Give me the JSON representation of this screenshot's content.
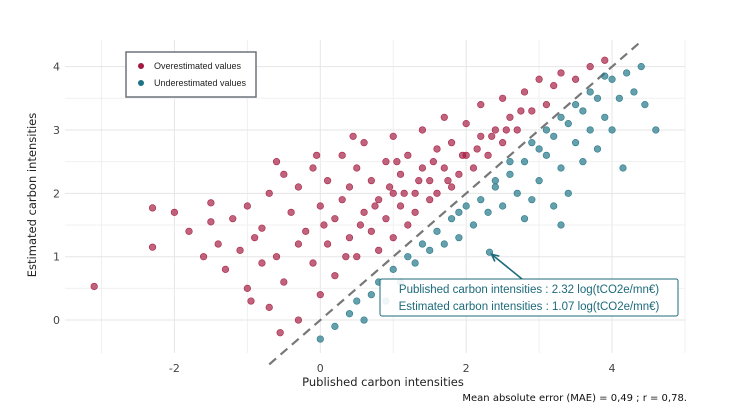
{
  "chart_data": {
    "type": "scatter",
    "xlabel": "Published carbon intensities",
    "ylabel": "Estimated carbon intensities",
    "xlim": [
      -3.5,
      5.0
    ],
    "ylim": [
      -0.52,
      4.42
    ],
    "xticks": [
      -2,
      0,
      2,
      4
    ],
    "yticks": [
      0,
      1,
      2,
      3,
      4
    ],
    "grid": true,
    "legend_position": "top-left",
    "reference_line": "y = x (dashed)",
    "caption": "Mean absolute error (MAE) = 0,49 ; r = 0,78.",
    "series": [
      {
        "name": "Overestimated values",
        "color": "#a3193f",
        "points": [
          [
            -3.1,
            0.53
          ],
          [
            -2.3,
            1.77
          ],
          [
            -2.3,
            1.15
          ],
          [
            -2.0,
            1.7
          ],
          [
            -1.8,
            1.4
          ],
          [
            -1.5,
            1.85
          ],
          [
            -1.5,
            1.55
          ],
          [
            -1.4,
            1.2
          ],
          [
            -1.3,
            0.8
          ],
          [
            -1.2,
            1.6
          ],
          [
            -1.1,
            1.1
          ],
          [
            -1.0,
            0.5
          ],
          [
            -1.0,
            1.8
          ],
          [
            -0.95,
            0.3
          ],
          [
            -0.9,
            1.3
          ],
          [
            -0.8,
            1.45
          ],
          [
            -0.7,
            2.0
          ],
          [
            -0.7,
            0.2
          ],
          [
            -0.6,
            2.5
          ],
          [
            -0.6,
            1.0
          ],
          [
            -0.5,
            2.3
          ],
          [
            -0.5,
            0.6
          ],
          [
            -0.4,
            1.7
          ],
          [
            -0.3,
            2.1
          ],
          [
            -0.3,
            0.0
          ],
          [
            -0.2,
            1.4
          ],
          [
            -0.1,
            0.9
          ],
          [
            -0.1,
            2.4
          ],
          [
            0.0,
            1.8
          ],
          [
            0.0,
            0.4
          ],
          [
            0.1,
            2.2
          ],
          [
            0.1,
            1.2
          ],
          [
            0.2,
            1.6
          ],
          [
            0.2,
            0.7
          ],
          [
            0.3,
            2.6
          ],
          [
            0.3,
            1.9
          ],
          [
            0.4,
            1.3
          ],
          [
            0.4,
            2.1
          ],
          [
            0.5,
            1.0
          ],
          [
            0.5,
            2.4
          ],
          [
            0.6,
            1.7
          ],
          [
            0.6,
            2.8
          ],
          [
            0.7,
            1.4
          ],
          [
            0.7,
            2.2
          ],
          [
            0.8,
            1.9
          ],
          [
            0.8,
            1.1
          ],
          [
            0.9,
            2.5
          ],
          [
            0.9,
            1.6
          ],
          [
            1.0,
            2.0
          ],
          [
            1.0,
            1.3
          ],
          [
            1.0,
            2.9
          ],
          [
            1.1,
            1.8
          ],
          [
            1.1,
            2.3
          ],
          [
            1.2,
            1.5
          ],
          [
            1.2,
            2.6
          ],
          [
            1.3,
            2.0
          ],
          [
            1.3,
            1.7
          ],
          [
            1.4,
            2.4
          ],
          [
            1.4,
            3.0
          ],
          [
            1.5,
            1.9
          ],
          [
            1.5,
            2.2
          ],
          [
            1.6,
            2.7
          ],
          [
            1.6,
            2.0
          ],
          [
            1.7,
            2.4
          ],
          [
            1.7,
            3.2
          ],
          [
            1.8,
            2.1
          ],
          [
            1.8,
            2.8
          ],
          [
            1.9,
            2.3
          ],
          [
            2.0,
            2.6
          ],
          [
            2.0,
            3.1
          ],
          [
            2.1,
            2.4
          ],
          [
            2.2,
            2.9
          ],
          [
            2.2,
            3.4
          ],
          [
            2.3,
            2.6
          ],
          [
            2.4,
            3.0
          ],
          [
            2.5,
            2.8
          ],
          [
            2.5,
            3.5
          ],
          [
            2.6,
            3.2
          ],
          [
            2.7,
            3.0
          ],
          [
            2.8,
            3.6
          ],
          [
            2.9,
            3.3
          ],
          [
            3.0,
            3.8
          ],
          [
            3.1,
            3.4
          ],
          [
            3.2,
            3.7
          ],
          [
            3.3,
            3.9
          ],
          [
            3.5,
            3.8
          ],
          [
            3.7,
            4.0
          ],
          [
            3.9,
            4.1
          ],
          [
            -0.3,
            1.2
          ],
          [
            0.05,
            1.5
          ],
          [
            0.35,
            1.0
          ],
          [
            0.55,
            1.5
          ],
          [
            0.75,
            1.8
          ],
          [
            0.95,
            2.1
          ],
          [
            1.15,
            2.0
          ],
          [
            1.35,
            2.2
          ],
          [
            1.55,
            2.5
          ],
          [
            1.75,
            2.2
          ],
          [
            1.95,
            2.6
          ],
          [
            2.15,
            2.7
          ],
          [
            2.35,
            2.9
          ],
          [
            2.55,
            3.0
          ],
          [
            2.75,
            3.3
          ],
          [
            1.05,
            2.5
          ],
          [
            0.45,
            2.9
          ],
          [
            -0.05,
            2.6
          ],
          [
            -0.8,
            0.9
          ],
          [
            -1.6,
            1.0
          ],
          [
            -0.55,
            -0.2
          ]
        ]
      },
      {
        "name": "Underestimated values",
        "color": "#1d7385",
        "points": [
          [
            0.0,
            -0.3
          ],
          [
            0.2,
            -0.1
          ],
          [
            0.4,
            0.1
          ],
          [
            0.5,
            0.3
          ],
          [
            0.7,
            0.4
          ],
          [
            0.8,
            0.6
          ],
          [
            0.9,
            0.3
          ],
          [
            1.0,
            0.8
          ],
          [
            1.1,
            0.6
          ],
          [
            1.2,
            1.0
          ],
          [
            1.3,
            0.9
          ],
          [
            1.4,
            1.2
          ],
          [
            1.5,
            1.1
          ],
          [
            1.6,
            1.4
          ],
          [
            1.7,
            1.2
          ],
          [
            1.8,
            1.6
          ],
          [
            1.9,
            1.3
          ],
          [
            2.0,
            1.8
          ],
          [
            2.1,
            1.5
          ],
          [
            2.2,
            1.9
          ],
          [
            2.32,
            1.07
          ],
          [
            2.3,
            1.7
          ],
          [
            2.4,
            2.1
          ],
          [
            2.5,
            1.8
          ],
          [
            2.6,
            2.3
          ],
          [
            2.7,
            2.0
          ],
          [
            2.8,
            2.5
          ],
          [
            2.9,
            1.9
          ],
          [
            3.0,
            2.7
          ],
          [
            3.0,
            2.2
          ],
          [
            3.1,
            2.6
          ],
          [
            3.2,
            2.9
          ],
          [
            3.2,
            1.8
          ],
          [
            3.3,
            2.4
          ],
          [
            3.4,
            3.1
          ],
          [
            3.4,
            2.0
          ],
          [
            3.5,
            2.8
          ],
          [
            3.6,
            3.3
          ],
          [
            3.6,
            2.5
          ],
          [
            3.7,
            3.0
          ],
          [
            3.8,
            3.5
          ],
          [
            3.8,
            2.7
          ],
          [
            3.9,
            3.2
          ],
          [
            4.0,
            3.8
          ],
          [
            4.0,
            3.0
          ],
          [
            4.1,
            3.5
          ],
          [
            4.15,
            2.4
          ],
          [
            4.2,
            3.9
          ],
          [
            4.3,
            3.6
          ],
          [
            4.4,
            4.0
          ],
          [
            4.45,
            3.4
          ],
          [
            4.6,
            3.0
          ],
          [
            3.3,
            1.5
          ],
          [
            2.8,
            1.6
          ],
          [
            1.5,
            0.5
          ],
          [
            0.6,
            0.0
          ],
          [
            1.9,
            1.7
          ],
          [
            2.4,
            2.2
          ],
          [
            2.6,
            2.5
          ],
          [
            2.9,
            2.8
          ],
          [
            3.1,
            3.0
          ],
          [
            3.3,
            3.2
          ],
          [
            3.5,
            3.4
          ],
          [
            3.7,
            3.6
          ],
          [
            3.9,
            3.85
          ]
        ]
      }
    ],
    "annotation": {
      "point": [
        2.32,
        1.07
      ],
      "line1": "Published carbon intensities : 2.32 log(tCO2e/mn€)",
      "line2": "Estimated carbon intensities : 1.07 log(tCO2e/mn€)",
      "color": "#1d6a7a"
    }
  }
}
